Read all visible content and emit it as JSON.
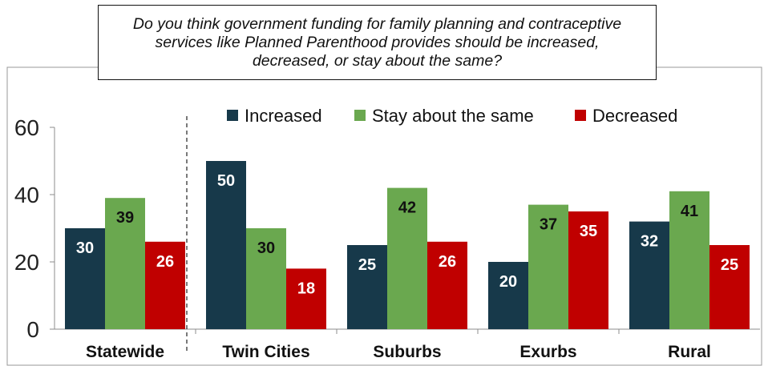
{
  "question": "Do you think government funding for family planning and contraceptive services like Planned Parenthood provides should be increased, decreased, or stay about the same?",
  "chart_data": {
    "type": "bar",
    "title": "Do you think government funding for family planning and contraceptive services like Planned Parenthood provides should be increased, decreased, or stay about the same?",
    "categories": [
      "Statewide",
      "Twin Cities",
      "Suburbs",
      "Exurbs",
      "Rural"
    ],
    "series": [
      {
        "name": "Increased",
        "color": "#17394a",
        "values": [
          30,
          50,
          25,
          20,
          32
        ]
      },
      {
        "name": "Stay about the same",
        "color": "#6aa84f",
        "values": [
          39,
          30,
          42,
          37,
          41
        ]
      },
      {
        "name": "Decreased",
        "color": "#c00000",
        "values": [
          26,
          18,
          26,
          35,
          25
        ]
      }
    ],
    "y_ticks": [
      0,
      20,
      40,
      60
    ],
    "ylim": [
      0,
      60
    ],
    "xlabel": "",
    "ylabel": "",
    "grid": false,
    "legend_position": "top",
    "separator_after_category": "Statewide"
  }
}
